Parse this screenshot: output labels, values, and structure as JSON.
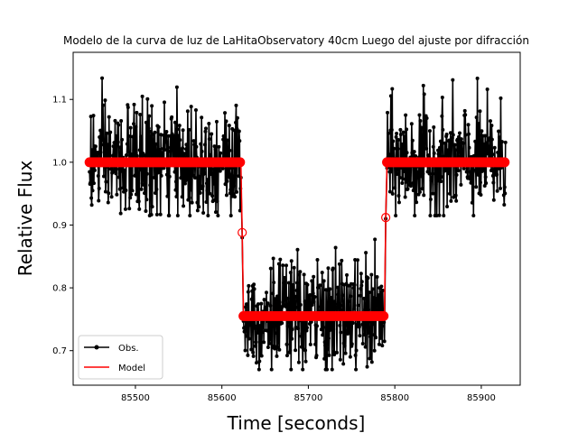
{
  "chart_data": {
    "type": "line",
    "title": "Modelo de la curva de luz de LaHitaObservatory 40cm Luego del ajuste por difracción",
    "xlabel": "Time [seconds]",
    "ylabel": "Relative Flux",
    "xlim": [
      85428,
      85945
    ],
    "ylim": [
      0.645,
      1.175
    ],
    "xticks": [
      85500,
      85600,
      85700,
      85800,
      85900
    ],
    "yticks": [
      0.7,
      0.8,
      0.9,
      1.0,
      1.1
    ],
    "xtick_labels": [
      "85500",
      "85600",
      "85700",
      "85800",
      "85900"
    ],
    "ytick_labels": [
      "0.7",
      "0.8",
      "0.9",
      "1.0",
      "1.1"
    ],
    "grid": false,
    "legend": {
      "position": "lower-left",
      "entries": [
        "Obs.",
        "Model"
      ]
    },
    "series": [
      {
        "name": "Obs.",
        "color": "#000000",
        "marker": "circle",
        "noise_sigma": 0.045,
        "segments": [
          {
            "x_start": 85447,
            "x_end": 85622,
            "level": 1.0
          },
          {
            "x_start": 85625,
            "x_end": 85788,
            "level": 0.755
          },
          {
            "x_start": 85791,
            "x_end": 85928,
            "level": 1.0
          }
        ],
        "transition_points": [
          {
            "x": 85623.5,
            "y": 0.88
          },
          {
            "x": 85789.5,
            "y": 0.91
          }
        ]
      },
      {
        "name": "Model",
        "color": "#ff0000",
        "points": [
          {
            "x": 85447,
            "y": 1.0
          },
          {
            "x": 85622,
            "y": 1.0
          },
          {
            "x": 85623.5,
            "y": 0.888
          },
          {
            "x": 85625,
            "y": 0.755
          },
          {
            "x": 85788,
            "y": 0.755
          },
          {
            "x": 85789.5,
            "y": 0.912
          },
          {
            "x": 85791,
            "y": 1.0
          },
          {
            "x": 85928,
            "y": 1.0
          }
        ],
        "hollow_markers": [
          {
            "x": 85623.5,
            "y": 0.888
          },
          {
            "x": 85789.5,
            "y": 0.912
          }
        ]
      }
    ]
  }
}
